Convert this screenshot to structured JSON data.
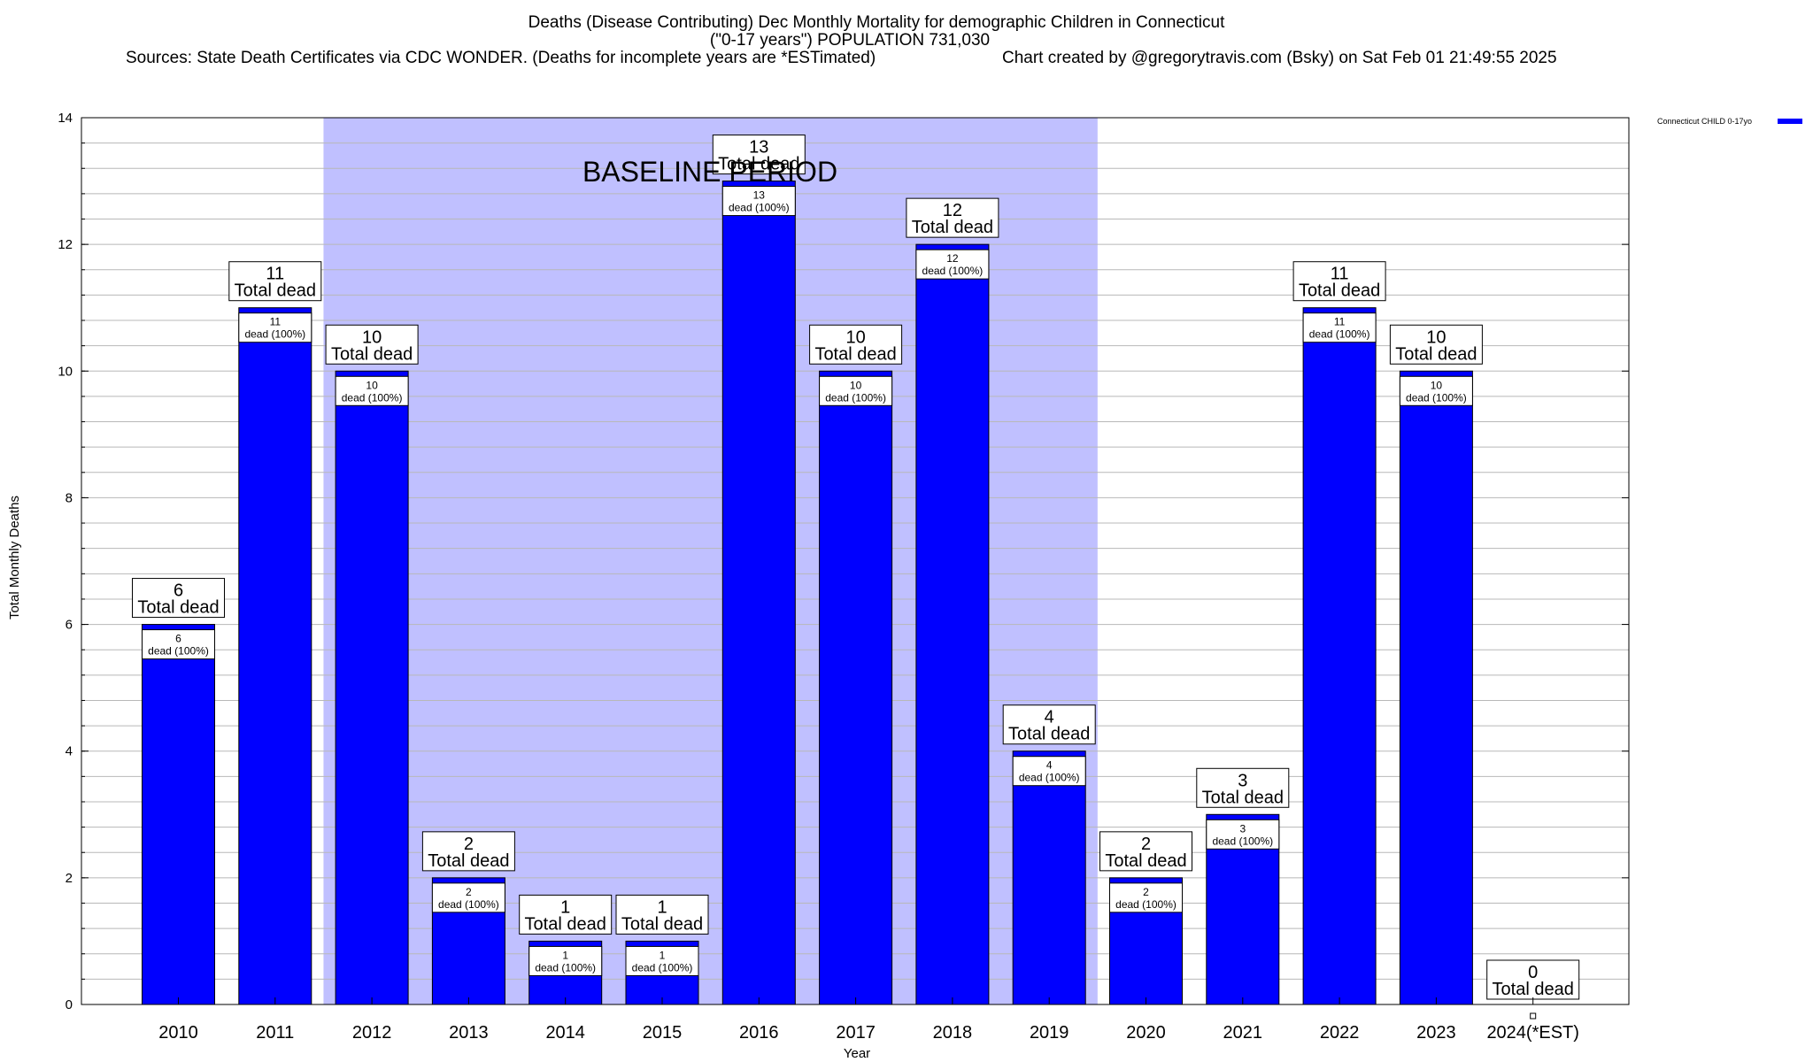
{
  "chart_data": {
    "type": "bar",
    "title_lines": [
      "Deaths (Disease Contributing) Dec Monthly Mortality for demographic Children in Connecticut",
      "(\"0-17 years\") POPULATION 731,030"
    ],
    "sources_text": "Sources: State Death Certificates via CDC WONDER. (Deaths for incomplete years are *ESTimated)",
    "credit_text": "Chart created by @gregorytravis.com (Bsky) on Sat Feb 01 21:49:55 2025",
    "xlabel": "Year",
    "ylabel": "Total Monthly Deaths",
    "ylim": [
      0,
      14
    ],
    "y_ticks": [
      0,
      2,
      4,
      6,
      8,
      10,
      12,
      14
    ],
    "minor_y_step": 0.4,
    "grid": true,
    "categories": [
      "2010",
      "2011",
      "2012",
      "2013",
      "2014",
      "2015",
      "2016",
      "2017",
      "2018",
      "2019",
      "2020",
      "2021",
      "2022",
      "2023",
      "2024(*EST)"
    ],
    "series": [
      {
        "name": "Connecticut CHILD 0-17yo",
        "color": "#0000ff",
        "values": [
          6,
          11,
          10,
          2,
          1,
          1,
          13,
          10,
          12,
          4,
          2,
          3,
          11,
          10,
          0
        ]
      }
    ],
    "total_label_suffix": "Total dead",
    "inner_label_suffix": "dead (100%)",
    "baseline_region": {
      "label": "BASELINE PERIOD",
      "start_category": "2012",
      "end_category": "2019",
      "color": "#c0c0ff"
    },
    "legend_position": "top-right"
  }
}
